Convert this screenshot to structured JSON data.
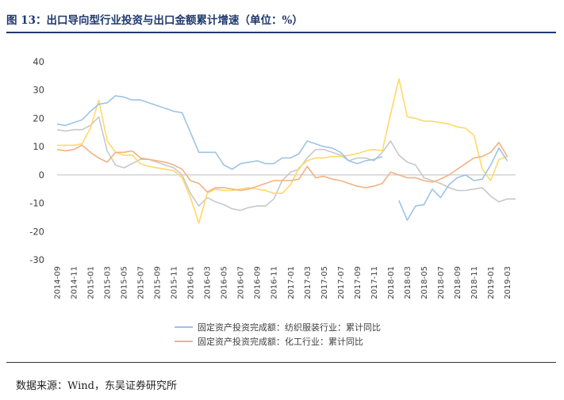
{
  "header": {
    "title": "图 13：出口导向型行业投资与出口金额累计增速（单位：%）"
  },
  "footer": {
    "source": "数据来源：Wind，东吴证券研究所"
  },
  "chart_data": {
    "type": "line",
    "title": "",
    "xlabel": "",
    "ylabel": "",
    "ylim": [
      -30,
      40
    ],
    "yticks": [
      40,
      30,
      20,
      10,
      0,
      -10,
      -20,
      -30
    ],
    "grid": false,
    "legend_position": "bottom",
    "x": [
      "2014-09",
      "2014-10",
      "2014-11",
      "2014-12",
      "2015-01",
      "2015-02",
      "2015-03",
      "2015-04",
      "2015-05",
      "2015-06",
      "2015-07",
      "2015-08",
      "2015-09",
      "2015-10",
      "2015-11",
      "2015-12",
      "2016-01",
      "2016-02",
      "2016-03",
      "2016-04",
      "2016-05",
      "2016-06",
      "2016-07",
      "2016-08",
      "2016-09",
      "2016-10",
      "2016-11",
      "2016-12",
      "2017-01",
      "2017-02",
      "2017-03",
      "2017-04",
      "2017-05",
      "2017-06",
      "2017-07",
      "2017-08",
      "2017-09",
      "2017-10",
      "2017-11",
      "2017-12",
      "2018-01",
      "2018-02",
      "2018-03",
      "2018-04",
      "2018-05",
      "2018-06",
      "2018-07",
      "2018-08",
      "2018-09",
      "2018-10",
      "2018-11",
      "2018-12",
      "2019-01",
      "2019-02",
      "2019-03",
      "2019-04"
    ],
    "x_tick_labels": [
      "2014-09",
      "2014-11",
      "2015-01",
      "2015-03",
      "2015-05",
      "2015-07",
      "2015-09",
      "2015-11",
      "2016-01",
      "2016-03",
      "2016-05",
      "2016-07",
      "2016-09",
      "2016-11",
      "2017-01",
      "2017-03",
      "2017-05",
      "2017-07",
      "2017-09",
      "2017-11",
      "2018-01",
      "2018-03",
      "2018-05",
      "2018-07",
      "2018-09",
      "2018-11",
      "2019-01",
      "2019-03"
    ],
    "series": [
      {
        "name": "固定资产投资完成额：纺织服装行业：累计同比",
        "color": "#9dc3e6",
        "in_legend": true,
        "values": [
          18,
          17.5,
          18.5,
          19.5,
          22.5,
          25,
          25.5,
          28,
          27.5,
          26.5,
          26.5,
          25.5,
          24.5,
          23.5,
          22.5,
          22,
          15,
          8,
          8,
          8,
          3.5,
          2,
          4,
          4.5,
          5,
          4,
          4,
          6,
          6,
          7.5,
          12,
          11,
          10,
          9.5,
          8,
          5,
          4,
          5,
          5.5,
          6.5,
          null,
          -9,
          -16,
          -11,
          -10.5,
          -5,
          -8,
          -3.5,
          -1,
          0,
          -2,
          -1.5,
          3.5,
          9.5,
          5,
          null
        ]
      },
      {
        "name": "固定资产投资完成额：化工行业：累计同比",
        "color": "#f4b183",
        "in_legend": true,
        "values": [
          9,
          8.5,
          9,
          10.5,
          8,
          6,
          4.5,
          8,
          8,
          8.5,
          6,
          5.5,
          5,
          4.5,
          3.5,
          2,
          -2,
          -3,
          -6,
          -4.5,
          -4.5,
          -5,
          -5.5,
          -5,
          -4,
          -3,
          -2,
          -2,
          -2,
          -1.5,
          3,
          -1,
          -0.5,
          -1.5,
          -2,
          -3,
          -4,
          -4.5,
          -4,
          -3,
          1,
          0,
          -1,
          -1,
          -2,
          -2.5,
          -1.5,
          0,
          2,
          4,
          6,
          6.5,
          8,
          11.5,
          6.5,
          null
        ]
      },
      {
        "name": "",
        "color": "#ffd966",
        "in_legend": false,
        "values": [
          10.5,
          10.5,
          10.5,
          11,
          16.5,
          26.5,
          12,
          8,
          7,
          7,
          4,
          3,
          2.5,
          2,
          1.5,
          -1,
          -8,
          -17,
          -6.5,
          -5,
          -5.5,
          -5.5,
          -5,
          -4.5,
          -5,
          -5.5,
          -6.5,
          -6.5,
          -3.5,
          2.5,
          5,
          6,
          6,
          6.5,
          6.5,
          7,
          7.5,
          8.5,
          9,
          8.5,
          21.5,
          34,
          20.5,
          20,
          19,
          19,
          18.5,
          18,
          17,
          16.5,
          14,
          2,
          -2,
          5.5,
          6.5,
          null
        ]
      },
      {
        "name": "",
        "color": "#c8c8c8",
        "in_legend": false,
        "values": [
          16,
          15.5,
          16,
          16,
          17.5,
          20.5,
          8.5,
          3.5,
          2.5,
          4,
          5.5,
          5.5,
          4.5,
          3.5,
          2.5,
          0,
          -6.5,
          -11,
          -8,
          -9.5,
          -10.5,
          -12,
          -12.5,
          -11.5,
          -11,
          -11,
          -8.5,
          -2,
          1,
          2,
          6,
          9,
          9,
          8,
          7,
          5,
          6,
          6,
          5,
          8,
          12,
          7,
          4.5,
          3.5,
          -1,
          -2,
          -3,
          -4.5,
          -5.5,
          -5.5,
          -5,
          -4.5,
          -7.5,
          -9.5,
          -8.5,
          -8.5
        ]
      }
    ]
  }
}
